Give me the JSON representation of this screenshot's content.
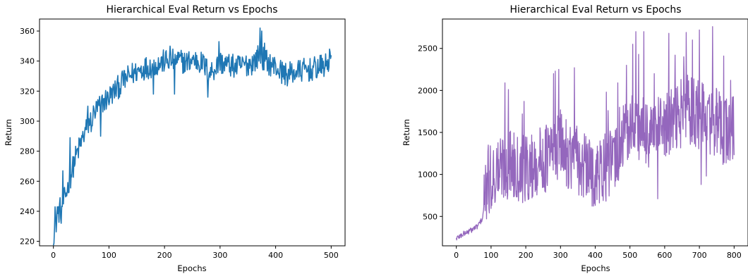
{
  "chart_data": [
    {
      "type": "line",
      "title": "Hierarchical Eval Return vs Epochs",
      "xlabel": "Epochs",
      "ylabel": "Return",
      "xlim": [
        -25,
        525
      ],
      "ylim": [
        217,
        368
      ],
      "xticks": [
        0,
        100,
        200,
        300,
        400,
        500
      ],
      "yticks": [
        220,
        240,
        260,
        280,
        300,
        320,
        340,
        360
      ],
      "grid": false,
      "color": "#1f77b4",
      "series": [
        {
          "x": [
            0,
            10,
            20,
            30,
            40,
            50,
            60,
            70,
            80,
            90,
            100,
            110,
            120,
            130,
            140,
            150,
            160,
            170,
            180,
            190,
            200,
            210,
            220,
            230,
            240,
            250,
            260,
            270,
            280,
            290,
            300,
            310,
            320,
            330,
            340,
            350,
            360,
            370,
            380,
            390,
            400,
            410,
            420,
            430,
            440,
            450,
            460,
            470,
            480,
            490,
            500
          ],
          "values": [
            225,
            240,
            248,
            262,
            276,
            286,
            296,
            303,
            309,
            313,
            316,
            320,
            324,
            328,
            331,
            333,
            335,
            336,
            337,
            338,
            340,
            340,
            341,
            340,
            339,
            341,
            340,
            338,
            332,
            335,
            339,
            338,
            337,
            336,
            337,
            338,
            339,
            344,
            341,
            338,
            336,
            333,
            331,
            332,
            333,
            334,
            334,
            335,
            336,
            337,
            341
          ],
          "noise": 8,
          "spikes": [
            [
              3,
              243
            ],
            [
              7,
              243
            ],
            [
              14,
              232
            ],
            [
              17,
              267
            ],
            [
              30,
              289
            ],
            [
              62,
              310
            ],
            [
              68,
              293
            ],
            [
              85,
              290
            ],
            [
              125,
              330
            ],
            [
              180,
              318
            ],
            [
              210,
              350
            ],
            [
              218,
              318
            ],
            [
              278,
              316
            ],
            [
              298,
              353
            ],
            [
              372,
              362
            ],
            [
              375,
              360
            ],
            [
              380,
              352
            ],
            [
              465,
              329
            ],
            [
              497,
              348
            ]
          ]
        }
      ]
    },
    {
      "type": "line",
      "title": "Hierarchical Eval Return vs Epochs",
      "xlabel": "Epochs",
      "ylabel": "Return",
      "xlim": [
        -40,
        840
      ],
      "ylim": [
        150,
        2850
      ],
      "xticks": [
        0,
        100,
        200,
        300,
        400,
        500,
        600,
        700,
        800
      ],
      "yticks": [
        500,
        1000,
        1500,
        2000,
        2500
      ],
      "grid": false,
      "color": "#9467bd",
      "series": [
        {
          "x": [
            0,
            20,
            40,
            60,
            75,
            85,
            100,
            120,
            140,
            160,
            180,
            200,
            220,
            240,
            260,
            280,
            300,
            320,
            340,
            360,
            380,
            400,
            420,
            440,
            460,
            480,
            500,
            520,
            540,
            560,
            580,
            600,
            620,
            640,
            660,
            680,
            700,
            720,
            740,
            760,
            780,
            800
          ],
          "values": [
            240,
            290,
            330,
            380,
            470,
            800,
            950,
            1050,
            1100,
            1150,
            1100,
            1050,
            1100,
            1150,
            1200,
            1300,
            1350,
            1250,
            1200,
            1100,
            1050,
            1000,
            1050,
            1100,
            1200,
            1400,
            1550,
            1600,
            1500,
            1450,
            1500,
            1550,
            1600,
            1700,
            1800,
            1750,
            1700,
            1650,
            1650,
            1550,
            1500,
            1550
          ],
          "noise": 420,
          "spikes": [
            [
              92,
              1350
            ],
            [
              140,
              2090
            ],
            [
              150,
              2010
            ],
            [
              190,
              1720
            ],
            [
              195,
              1870
            ],
            [
              207,
              700
            ],
            [
              280,
              2200
            ],
            [
              285,
              2230
            ],
            [
              295,
              2250
            ],
            [
              340,
              2270
            ],
            [
              405,
              700
            ],
            [
              432,
              1980
            ],
            [
              437,
              1760
            ],
            [
              465,
              2090
            ],
            [
              470,
              1800
            ],
            [
              490,
              2300
            ],
            [
              500,
              1700
            ],
            [
              508,
              2550
            ],
            [
              517,
              2700
            ],
            [
              525,
              2430
            ],
            [
              540,
              2700
            ],
            [
              560,
              1800
            ],
            [
              570,
              2200
            ],
            [
              580,
              710
            ],
            [
              612,
              2680
            ],
            [
              630,
              2420
            ],
            [
              655,
              2400
            ],
            [
              662,
              2690
            ],
            [
              680,
              2600
            ],
            [
              700,
              2720
            ],
            [
              705,
              880
            ],
            [
              720,
              980
            ],
            [
              738,
              2760
            ],
            [
              770,
              2410
            ],
            [
              780,
              1230
            ],
            [
              790,
              2120
            ],
            [
              800,
              1230
            ]
          ]
        }
      ]
    }
  ]
}
